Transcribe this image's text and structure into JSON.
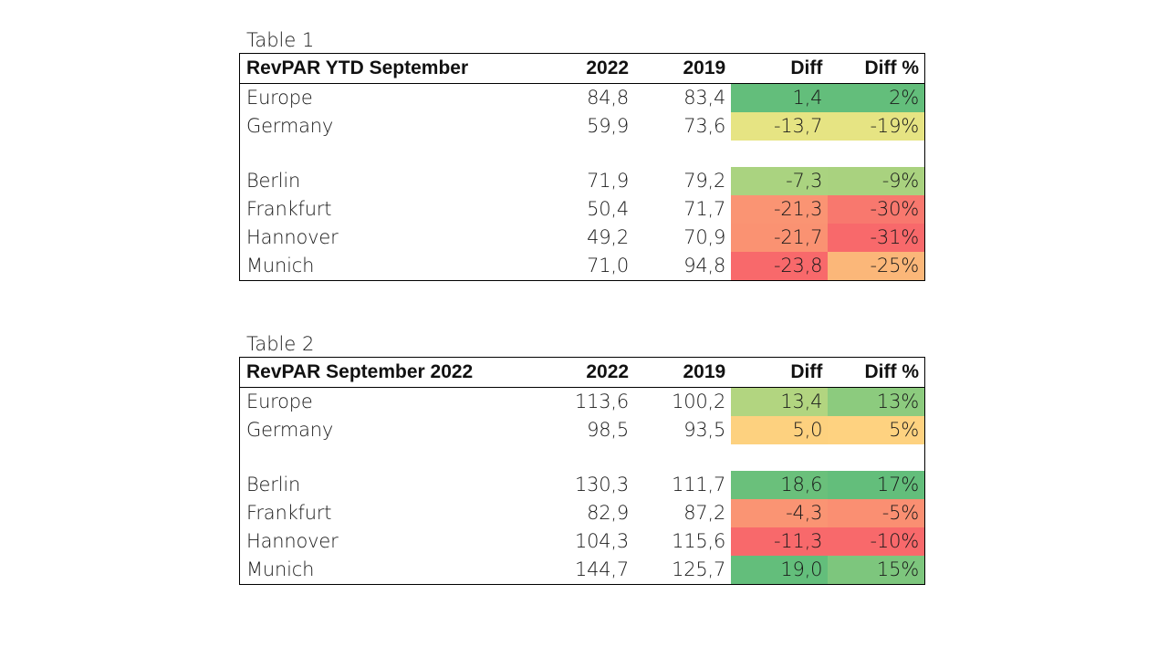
{
  "tables": [
    {
      "caption": "Table 1",
      "headers": {
        "label": "RevPAR YTD September",
        "y2022": "2022",
        "y2019": "2019",
        "diff": "Diff",
        "pct": "Diff %"
      },
      "rows": [
        {
          "name": "Europe",
          "y2022": "84,8",
          "y2019": "83,4",
          "diff": "1,4",
          "pct": "2%",
          "diff_color": "#63be7b",
          "pct_color": "#63be7b"
        },
        {
          "name": "Germany",
          "y2022": "59,9",
          "y2019": "73,6",
          "diff": "-13,7",
          "pct": "-19%",
          "diff_color": "#e6e483",
          "pct_color": "#e6e483"
        },
        {
          "spacer": true
        },
        {
          "name": "Berlin",
          "y2022": "71,9",
          "y2019": "79,2",
          "diff": "-7,3",
          "pct": "-9%",
          "diff_color": "#aad380",
          "pct_color": "#a9d27f"
        },
        {
          "name": "Frankfurt",
          "y2022": "50,4",
          "y2019": "71,7",
          "diff": "-21,3",
          "pct": "-30%",
          "diff_color": "#fa9473",
          "pct_color": "#f8786e"
        },
        {
          "name": "Hannover",
          "y2022": "49,2",
          "y2019": "70,9",
          "diff": "-21,7",
          "pct": "-31%",
          "diff_color": "#fa9272",
          "pct_color": "#f8696b"
        },
        {
          "name": "Munich",
          "y2022": "71,0",
          "y2019": "94,8",
          "diff": "-23,8",
          "pct": "-25%",
          "diff_color": "#f8696b",
          "pct_color": "#fbb779"
        }
      ]
    },
    {
      "caption": "Table 2",
      "headers": {
        "label": "RevPAR September 2022",
        "y2022": "2022",
        "y2019": "2019",
        "diff": "Diff",
        "pct": "Diff %"
      },
      "rows": [
        {
          "name": "Europe",
          "y2022": "113,6",
          "y2019": "100,2",
          "diff": "13,4",
          "pct": "13%",
          "diff_color": "#b2d580",
          "pct_color": "#8ccb7e"
        },
        {
          "name": "Germany",
          "y2022": "98,5",
          "y2019": "93,5",
          "diff": "5,0",
          "pct": "5%",
          "diff_color": "#fdd17f",
          "pct_color": "#fed280"
        },
        {
          "spacer": true
        },
        {
          "name": "Berlin",
          "y2022": "130,3",
          "y2019": "111,7",
          "diff": "18,6",
          "pct": "17%",
          "diff_color": "#6ac07b",
          "pct_color": "#63be7b"
        },
        {
          "name": "Frankfurt",
          "y2022": "82,9",
          "y2019": "87,2",
          "diff": "-4,3",
          "pct": "-5%",
          "diff_color": "#fa9473",
          "pct_color": "#fa8f72"
        },
        {
          "name": "Hannover",
          "y2022": "104,3",
          "y2019": "115,6",
          "diff": "-11,3",
          "pct": "-10%",
          "diff_color": "#f8696b",
          "pct_color": "#f8696b"
        },
        {
          "name": "Munich",
          "y2022": "144,7",
          "y2019": "125,7",
          "diff": "19,0",
          "pct": "15%",
          "diff_color": "#63be7b",
          "pct_color": "#7dc67d"
        }
      ]
    }
  ]
}
